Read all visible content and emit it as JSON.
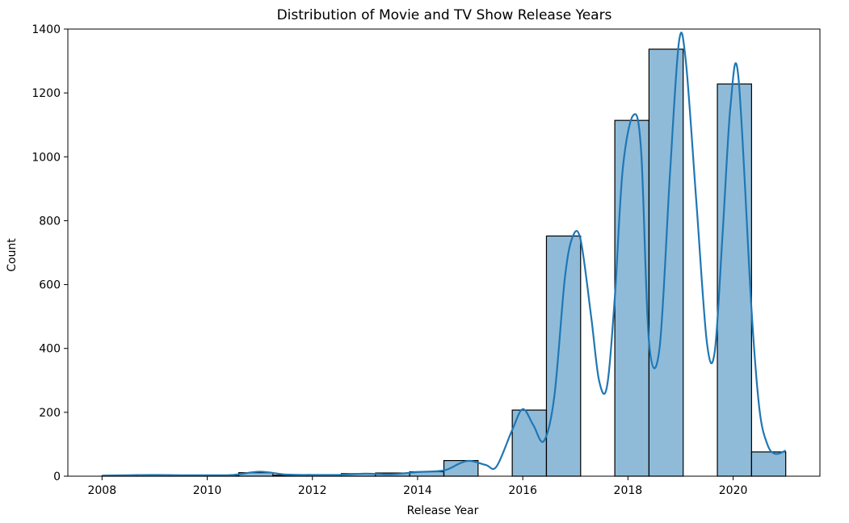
{
  "chart_data": {
    "type": "bar",
    "title": "Distribution of Movie and TV Show Release Years",
    "xlabel": "Release Year",
    "ylabel": "Count",
    "xlim": [
      2007.35,
      2021.65
    ],
    "ylim": [
      0,
      1400
    ],
    "xticks": [
      2008,
      2010,
      2012,
      2014,
      2016,
      2018,
      2020
    ],
    "yticks": [
      0,
      200,
      400,
      600,
      800,
      1000,
      1200,
      1400
    ],
    "bins": {
      "x0": [
        2008.0,
        2008.65,
        2009.3,
        2009.95,
        2010.6,
        2011.25,
        2011.9,
        2012.55,
        2013.2,
        2013.85,
        2014.5,
        2015.15,
        2015.8,
        2016.45,
        2017.1,
        2017.75,
        2018.4,
        2019.05,
        2019.7,
        2020.35
      ],
      "x1": [
        2008.65,
        2009.3,
        2009.95,
        2010.6,
        2011.25,
        2011.9,
        2012.55,
        2013.2,
        2013.85,
        2014.5,
        2015.15,
        2015.8,
        2016.45,
        2017.1,
        2017.75,
        2018.4,
        2019.05,
        2019.7,
        2020.35,
        2021.0
      ],
      "counts": [
        1,
        2,
        1,
        1,
        11,
        3,
        3,
        8,
        10,
        14,
        49,
        0,
        207,
        752,
        0,
        1114,
        1337,
        0,
        1228,
        76
      ]
    },
    "kde": {
      "x": [
        2008.0,
        2008.5,
        2009.0,
        2009.5,
        2010.0,
        2010.5,
        2011.0,
        2011.5,
        2012.0,
        2012.5,
        2013.0,
        2013.5,
        2014.0,
        2014.5,
        2014.8,
        2015.0,
        2015.3,
        2015.5,
        2015.8,
        2016.0,
        2016.2,
        2016.4,
        2016.6,
        2016.8,
        2016.95,
        2017.1,
        2017.3,
        2017.45,
        2017.6,
        2017.75,
        2017.9,
        2018.1,
        2018.25,
        2018.4,
        2018.6,
        2018.8,
        2018.97,
        2019.1,
        2019.3,
        2019.5,
        2019.65,
        2019.8,
        2019.95,
        2020.1,
        2020.35,
        2020.5,
        2020.65,
        2020.8,
        2021.0
      ],
      "y": [
        2,
        3,
        4,
        3,
        3,
        4,
        14,
        5,
        4,
        4,
        8,
        6,
        13,
        18,
        40,
        48,
        35,
        30,
        145,
        210,
        160,
        110,
        250,
        620,
        750,
        740,
        500,
        300,
        280,
        560,
        960,
        1130,
        1020,
        420,
        400,
        950,
        1360,
        1300,
        860,
        420,
        390,
        760,
        1160,
        1250,
        520,
        210,
        100,
        70,
        80
      ]
    }
  }
}
